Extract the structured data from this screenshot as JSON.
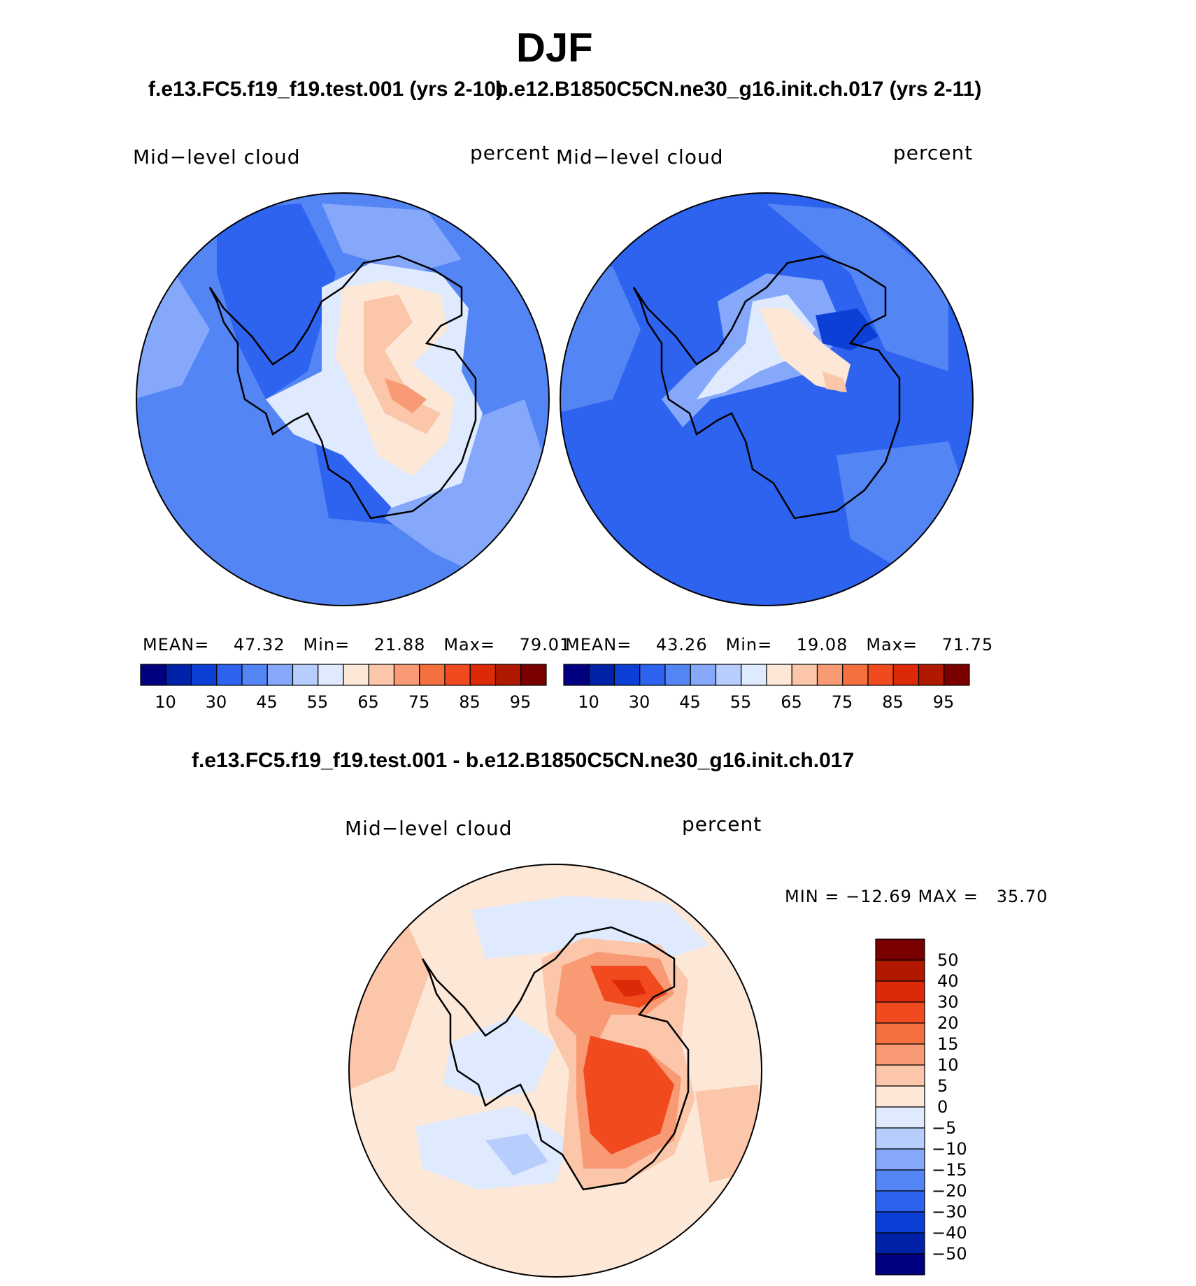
{
  "page": {
    "season": "DJF",
    "case_a_title": "f.e13.FC5.f19_f19.test.001 (yrs 2-10)",
    "case_b_title": "b.e12.B1850C5CN.ne30_g16.init.ch.017 (yrs 2-11)",
    "diff_title": "f.e13.FC5.f19_f19.test.001 - b.e12.B1850C5CN.ne30_g16.init.ch.017"
  },
  "panels": {
    "left": {
      "variable": "Mid−level cloud",
      "units": "percent",
      "stats": {
        "mean_label": "MEAN=",
        "mean": "47.32",
        "min_label": "Min=",
        "min": "21.88",
        "max_label": "Max=",
        "max": "79.01"
      }
    },
    "right": {
      "variable": "Mid−level cloud",
      "units": "percent",
      "stats": {
        "mean_label": "MEAN=",
        "mean": "43.26",
        "min_label": "Min=",
        "min": "19.08",
        "max_label": "Max=",
        "max": "71.75"
      }
    },
    "diff": {
      "variable": "Mid−level cloud",
      "units": "percent",
      "minmax": "MIN = −12.69 MAX =   35.70"
    }
  },
  "colorbars": {
    "absolute": {
      "tick_labels": [
        "10",
        "30",
        "45",
        "55",
        "65",
        "75",
        "85",
        "95"
      ],
      "colors": [
        "#000080",
        "#0022a8",
        "#0b3fd6",
        "#2d63ef",
        "#5485f4",
        "#86a8fb",
        "#b7cefd",
        "#dfeafe",
        "#fde8d8",
        "#fbc6aa",
        "#f89a73",
        "#f4703f",
        "#f14a1e",
        "#dc2a08",
        "#b01800",
        "#7a0000"
      ]
    },
    "difference": {
      "tick_labels": [
        "50",
        "40",
        "30",
        "20",
        "15",
        "10",
        "5",
        "0",
        "−5",
        "−10",
        "−15",
        "−20",
        "−30",
        "−40",
        "−50"
      ],
      "colors_top_to_bottom": [
        "#7a0000",
        "#b01800",
        "#dc2a08",
        "#f14a1e",
        "#f4703f",
        "#f89a73",
        "#fbc6aa",
        "#fde8d8",
        "#dfeafe",
        "#b7cefd",
        "#86a8fb",
        "#5485f4",
        "#2d63ef",
        "#0b3fd6",
        "#0022a8",
        "#000080"
      ]
    }
  },
  "map_colors": {
    "ocean_left": "#5485f4",
    "ocean_right": "#2d63ef",
    "ocean_diff": "#fde8d8",
    "coast": "#000000"
  }
}
